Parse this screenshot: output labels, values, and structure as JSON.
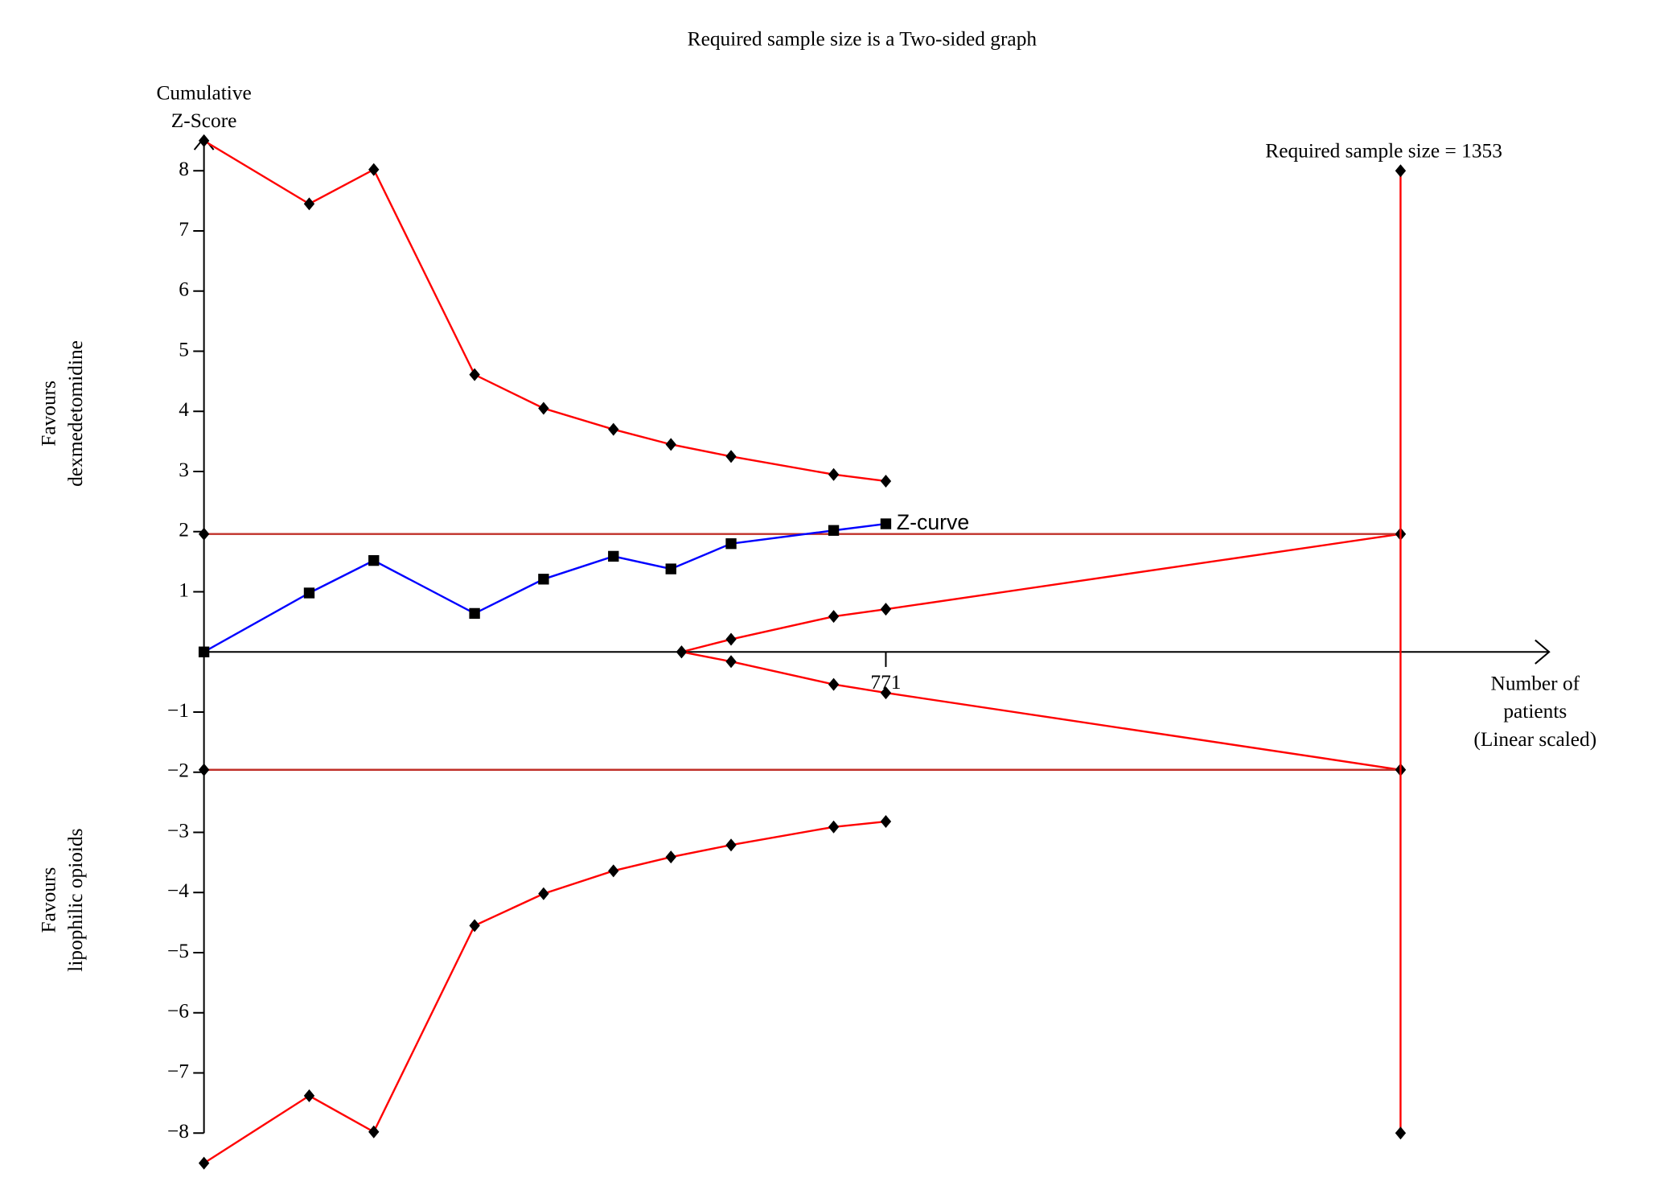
{
  "chart_data": {
    "type": "line",
    "title": "Required sample size is a Two-sided graph",
    "ylabel": [
      "Cumulative",
      "Z-Score"
    ],
    "xlabel": [
      "Number of",
      "patients",
      "(Linear scaled)"
    ],
    "favours_upper": [
      "Favours",
      "dexmedetomidine"
    ],
    "favours_lower": [
      "Favours",
      "lipophilic opioids"
    ],
    "annotation": {
      "text": "Required sample size = 1353",
      "color": "#ff0000"
    },
    "xlim": [
      0,
      1521
    ],
    "ylim": [
      -8.6,
      8.6
    ],
    "xticks": [
      771
    ],
    "yticks": [
      {
        "value": -8,
        "label": "−8"
      },
      {
        "value": -7,
        "label": "−7"
      },
      {
        "value": -6,
        "label": "−6"
      },
      {
        "value": -5,
        "label": "−5"
      },
      {
        "value": -4,
        "label": "−4"
      },
      {
        "value": -3,
        "label": "−3"
      },
      {
        "value": -2,
        "label": "−2"
      },
      {
        "value": -1,
        "label": "−1"
      },
      1,
      2,
      3,
      4,
      5,
      6,
      7,
      8
    ],
    "series": [
      {
        "color": "#ff0000",
        "marker": "diamond",
        "x": [
          0,
          119,
          192,
          306,
          384,
          463,
          528,
          596,
          712,
          771
        ],
        "values": [
          8.5,
          7.45,
          8.02,
          4.61,
          4.05,
          3.7,
          3.45,
          3.25,
          2.95,
          2.84
        ]
      },
      {
        "color": "#ff0000",
        "marker": "diamond",
        "x": [
          0,
          119,
          192,
          306,
          384,
          463,
          528,
          596,
          712,
          771
        ],
        "values": [
          -8.5,
          -7.38,
          -7.98,
          -4.55,
          -4.02,
          -3.64,
          -3.41,
          -3.21,
          -2.91,
          -2.82
        ]
      },
      {
        "color": "#ff0000",
        "marker": "diamond",
        "x": [
          540,
          596,
          712,
          771,
          1353
        ],
        "values": [
          0,
          0.21,
          0.59,
          0.71,
          1.96
        ]
      },
      {
        "color": "#ff0000",
        "marker": "diamond",
        "x": [
          540,
          596,
          712,
          771,
          1353
        ],
        "values": [
          0,
          -0.16,
          -0.54,
          -0.68,
          -1.96
        ]
      },
      {
        "color": "#c0302a",
        "marker": "diamond",
        "x": [
          0,
          1353
        ],
        "values": [
          1.96,
          1.96
        ]
      },
      {
        "color": "#c0302a",
        "marker": "diamond",
        "x": [
          0,
          1353
        ],
        "values": [
          -1.96,
          -1.96
        ]
      },
      {
        "color": "#ff0000",
        "marker": "diamond",
        "x": [
          1353,
          1353
        ],
        "values": [
          8,
          -8
        ]
      },
      {
        "name": "Z-curve",
        "color": "#0000ff",
        "marker": "square",
        "x": [
          0,
          119,
          192,
          306,
          384,
          463,
          528,
          596,
          712,
          771
        ],
        "values": [
          0,
          0.98,
          1.52,
          0.64,
          1.21,
          1.59,
          1.38,
          1.8,
          2.02,
          2.13
        ]
      }
    ]
  }
}
